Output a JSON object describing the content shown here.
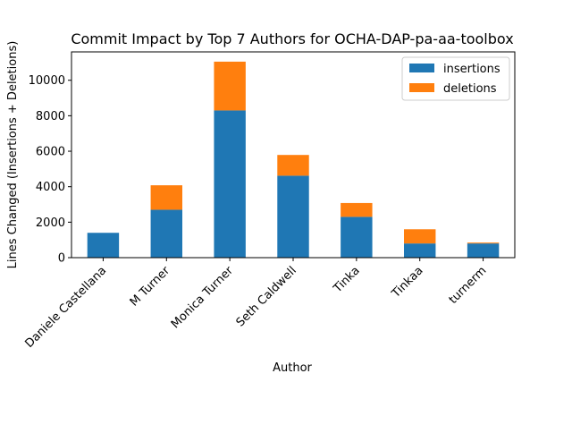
{
  "chart_data": {
    "type": "bar",
    "stacked": true,
    "title": "Commit Impact by Top 7 Authors for OCHA-DAP-pa-aa-toolbox",
    "xlabel": "Author",
    "ylabel": "Lines Changed (Insertions + Deletions)",
    "ylim": [
      0,
      11600
    ],
    "yticks": [
      0,
      2000,
      4000,
      6000,
      8000,
      10000
    ],
    "categories": [
      "Daniele Castellana",
      "M Turner",
      "Monica Turner",
      "Seth Caldwell",
      "Tinka",
      "Tinkaa",
      "turnerm"
    ],
    "series": [
      {
        "name": "insertions",
        "color": "#1f77b4",
        "values": [
          1400,
          2700,
          8300,
          4620,
          2300,
          800,
          800
        ]
      },
      {
        "name": "deletions",
        "color": "#ff7f0e",
        "values": [
          0,
          1380,
          2750,
          1170,
          780,
          800,
          50
        ]
      }
    ],
    "legend_position": "top-right",
    "grid": false
  }
}
